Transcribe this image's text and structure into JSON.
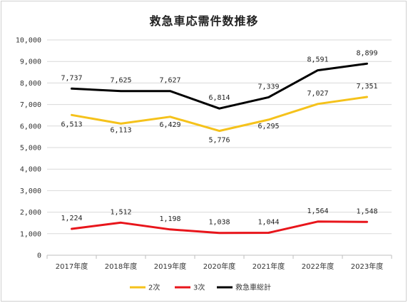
{
  "chart_data": {
    "type": "line",
    "title": "救急車応需件数推移",
    "categories": [
      "2017年度",
      "2018年度",
      "2019年度",
      "2020年度",
      "2021年度",
      "2022年度",
      "2023年度"
    ],
    "ylim": [
      0,
      10000
    ],
    "yticks": [
      "0",
      "1,000",
      "2,000",
      "3,000",
      "4,000",
      "5,000",
      "6,000",
      "7,000",
      "8,000",
      "9,000",
      "10,000"
    ],
    "grid": true,
    "legend": "bottom",
    "series": [
      {
        "name": "2次",
        "color": "#f5c21b",
        "values": [
          6513,
          6113,
          6429,
          5776,
          6295,
          7027,
          7351
        ],
        "labels": [
          "6,513",
          "6,113",
          "6,429",
          "5,776",
          "6,295",
          "7,027",
          "7,351"
        ]
      },
      {
        "name": "3次",
        "color": "#e8151b",
        "values": [
          1224,
          1512,
          1198,
          1038,
          1044,
          1564,
          1548
        ],
        "labels": [
          "1,224",
          "1,512",
          "1,198",
          "1,038",
          "1,044",
          "1,564",
          "1,548"
        ]
      },
      {
        "name": "救急車総計",
        "color": "#000000",
        "values": [
          7737,
          7625,
          7627,
          6814,
          7339,
          8591,
          8899
        ],
        "labels": [
          "7,737",
          "7,625",
          "7,627",
          "6,814",
          "7,339",
          "8,591",
          "8,899"
        ]
      }
    ]
  }
}
